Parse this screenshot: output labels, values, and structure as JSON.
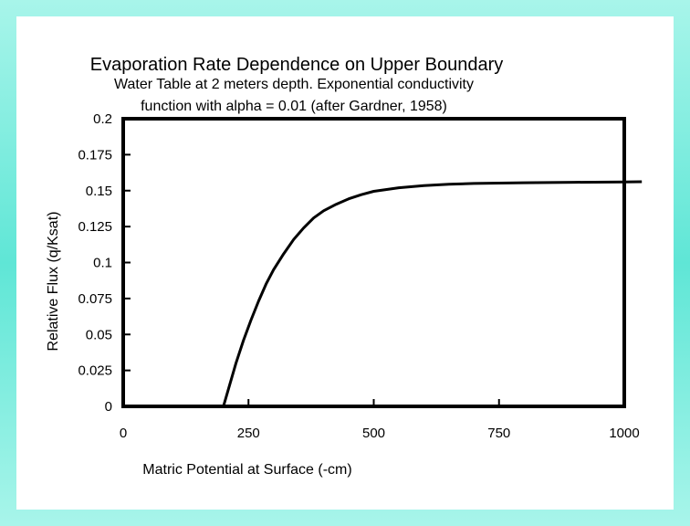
{
  "chart_data": {
    "type": "line",
    "title": "Evaporation Rate Dependence on Upper Boundary",
    "subtitle_lines": [
      "Water Table at 2 meters depth.  Exponential conductivity",
      "function with alpha = 0.01 (after Gardner, 1958)"
    ],
    "xlabel": "Matric Potential at Surface (-cm)",
    "ylabel": "Relative Flux (q/Ksat)",
    "xlim": [
      0,
      1000
    ],
    "ylim": [
      0,
      0.2
    ],
    "x_ticks": [
      "0",
      "250",
      "500",
      "750",
      "1000"
    ],
    "x_tick_values": [
      0,
      250,
      500,
      750,
      1000
    ],
    "y_ticks": [
      "0",
      "0.025",
      "0.05",
      "0.075",
      "0.1",
      "0.125",
      "0.15",
      "0.175",
      "0.2"
    ],
    "y_tick_values": [
      0,
      0.025,
      0.05,
      0.075,
      0.1,
      0.125,
      0.15,
      0.175,
      0.2
    ],
    "grid": false,
    "series": [
      {
        "x": [
          200,
          210,
          225,
          240,
          255,
          270,
          285,
          300,
          320,
          340,
          360,
          380,
          400,
          425,
          450,
          475,
          500,
          550,
          600,
          650,
          700,
          800,
          900,
          1000,
          1035
        ],
        "y": [
          0,
          0.012,
          0.03,
          0.046,
          0.06,
          0.073,
          0.085,
          0.095,
          0.106,
          0.116,
          0.124,
          0.131,
          0.136,
          0.1405,
          0.1443,
          0.1472,
          0.1495,
          0.152,
          0.1535,
          0.1545,
          0.155,
          0.1555,
          0.1558,
          0.156,
          0.1562
        ]
      }
    ],
    "colors": {
      "line": "#000000",
      "frame": "#000000"
    }
  }
}
